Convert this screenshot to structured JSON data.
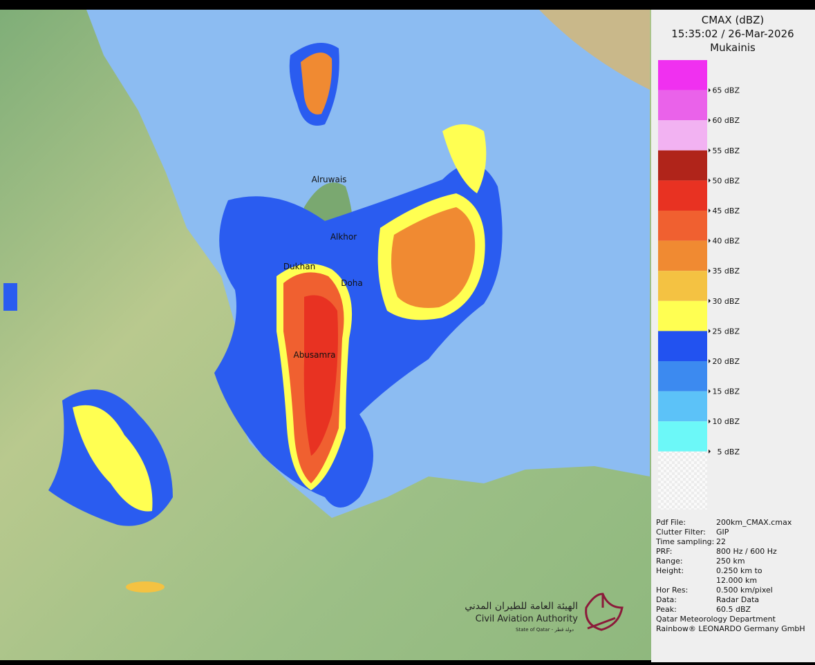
{
  "header": {
    "title": "CMAX (dBZ)",
    "timestamp": "15:35:02 / 26-Mar-2026",
    "site": "Mukainis"
  },
  "legend": {
    "items": [
      {
        "label": "65 dBZ",
        "color": "#f030f0"
      },
      {
        "label": "60 dBZ",
        "color": "#ea62ea"
      },
      {
        "label": "55 dBZ",
        "color": "#f2b2f2"
      },
      {
        "label": "50 dBZ",
        "color": "#b0241a"
      },
      {
        "label": "45 dBZ",
        "color": "#e83222"
      },
      {
        "label": "40 dBZ",
        "color": "#f06030"
      },
      {
        "label": "35 dBZ",
        "color": "#f08a32"
      },
      {
        "label": "30 dBZ",
        "color": "#f4c242"
      },
      {
        "label": "25 dBZ",
        "color": "#ffff52"
      },
      {
        "label": "20 dBZ",
        "color": "#2252f0"
      },
      {
        "label": "15 dBZ",
        "color": "#3c8af0"
      },
      {
        "label": "10 dBZ",
        "color": "#5cc2f8"
      },
      {
        "label": "5 dBZ",
        "color": "#6cf8f8"
      }
    ]
  },
  "map": {
    "places": [
      "Alruwais",
      "Alkhor",
      "Dukhan",
      "Doha",
      "Abusamra"
    ]
  },
  "info": {
    "rows": [
      {
        "label": "Pdf File:",
        "value": [
          "200km_CMAX.cmax"
        ]
      },
      {
        "label": "Clutter Filter:",
        "value": [
          "GIP"
        ]
      },
      {
        "label": "Time sampling:",
        "value": [
          "22"
        ]
      },
      {
        "label": "PRF:",
        "value": [
          "800 Hz / 600 Hz"
        ]
      },
      {
        "label": "Range:",
        "value": [
          "250 km"
        ]
      },
      {
        "label": "Height:",
        "value": [
          "0.250 km to",
          "12.000 km"
        ]
      },
      {
        "label": "Hor Res:",
        "value": [
          "0.500 km/pixel"
        ]
      },
      {
        "label": "Data:",
        "value": [
          "Radar Data"
        ]
      },
      {
        "label": "Peak:",
        "value": [
          "60.5 dBZ"
        ]
      }
    ],
    "footer": [
      "Qatar Meteorology Department",
      "Rainbow® LEONARDO Germany GmbH"
    ]
  },
  "logo": {
    "arabic": "الهيئة العامة للطيران المدني",
    "english": "Civil Aviation Authority",
    "state": "State of Qatar - دولة قطر"
  }
}
